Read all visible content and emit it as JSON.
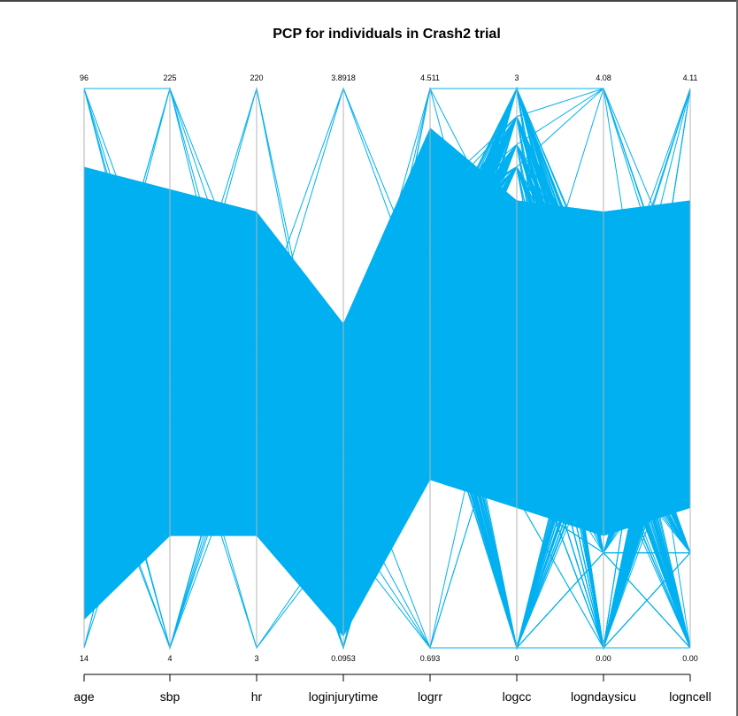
{
  "chart_data": {
    "type": "parallel-coordinates",
    "title": "PCP for individuals in Crash2 trial",
    "line_color": "#00b0f0",
    "axis_color": "#b5b5b5",
    "axes": [
      {
        "name": "age",
        "max_label": "96",
        "min_label": "14",
        "range": [
          14,
          96
        ]
      },
      {
        "name": "sbp",
        "max_label": "225",
        "min_label": "4",
        "range": [
          4,
          225
        ]
      },
      {
        "name": "hr",
        "max_label": "220",
        "min_label": "3",
        "range": [
          3,
          220
        ]
      },
      {
        "name": "loginjurytime",
        "max_label": "3.8918",
        "min_label": "0.0953",
        "range": [
          0.0953,
          3.8918
        ]
      },
      {
        "name": "logrr",
        "max_label": "4.511",
        "min_label": "0.693",
        "range": [
          0.693,
          4.511
        ]
      },
      {
        "name": "logcc",
        "max_label": "3",
        "min_label": "0",
        "range": [
          0,
          3
        ]
      },
      {
        "name": "logndaysicu",
        "max_label": "4.08",
        "min_label": "0.00",
        "range": [
          0,
          4.08
        ]
      },
      {
        "name": "logncell",
        "max_label": "4.11",
        "min_label": "0.00",
        "range": [
          0,
          4.11
        ]
      }
    ]
  }
}
